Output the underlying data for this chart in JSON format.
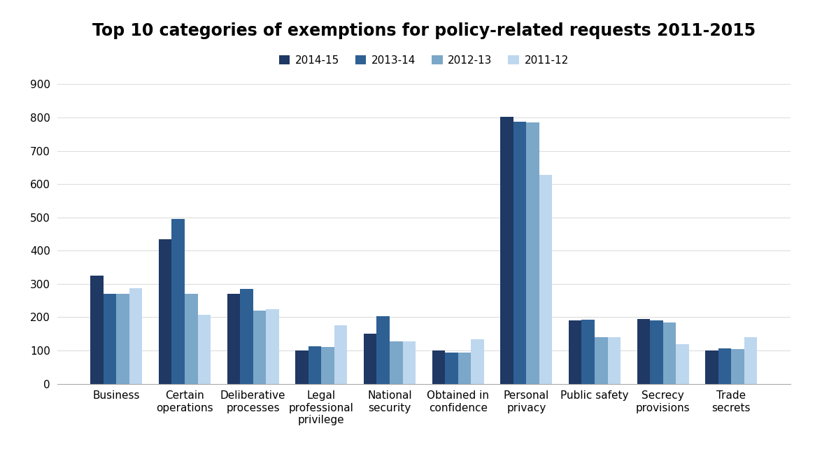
{
  "title": "Top 10 categories of exemptions for policy-related requests 2011-2015",
  "categories": [
    "Business",
    "Certain\noperations",
    "Deliberative\nprocesses",
    "Legal\nprofessional\nprivilege",
    "National\nsecurity",
    "Obtained in\nconfidence",
    "Personal\nprivacy",
    "Public safety",
    "Secrecy\nprovisions",
    "Trade\nsecrets"
  ],
  "series": [
    {
      "label": "2014-15",
      "color": "#1F3864",
      "values": [
        325,
        435,
        270,
        100,
        150,
        100,
        803,
        190,
        195,
        100
      ]
    },
    {
      "label": "2013-14",
      "color": "#2E6094",
      "values": [
        270,
        495,
        285,
        113,
        203,
        93,
        788,
        193,
        190,
        107
      ]
    },
    {
      "label": "2012-13",
      "color": "#7BA7C9",
      "values": [
        270,
        270,
        220,
        110,
        128,
        93,
        785,
        140,
        185,
        105
      ]
    },
    {
      "label": "2011-12",
      "color": "#BDD7EE",
      "values": [
        288,
        207,
        225,
        175,
        128,
        133,
        628,
        140,
        118,
        140
      ]
    }
  ],
  "ylim": [
    0,
    900
  ],
  "yticks": [
    0,
    100,
    200,
    300,
    400,
    500,
    600,
    700,
    800,
    900
  ],
  "ylabel": "",
  "xlabel": "",
  "background_color": "#ffffff",
  "title_fontsize": 17,
  "legend_fontsize": 11,
  "tick_fontsize": 11,
  "bar_width": 0.19
}
